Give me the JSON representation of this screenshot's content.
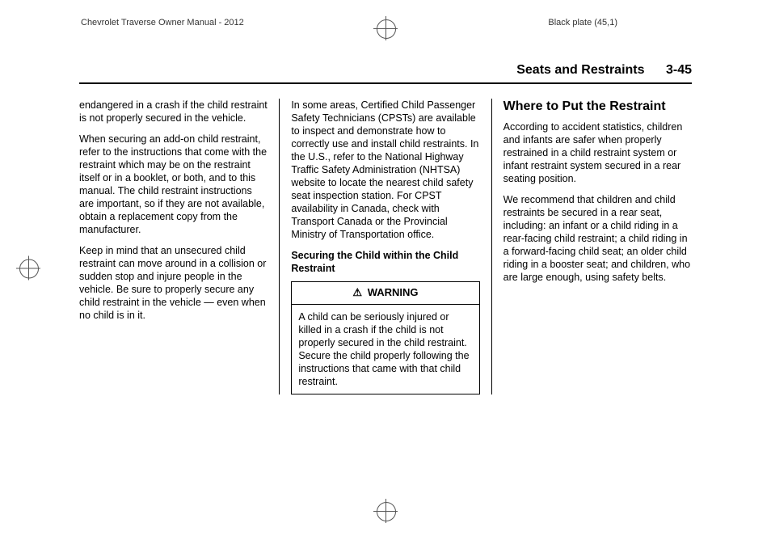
{
  "header": {
    "left": "Chevrolet Traverse Owner Manual - 2012",
    "right": "Black plate (45,1)"
  },
  "pageHeader": {
    "section": "Seats and Restraints",
    "number": "3-45"
  },
  "col1": {
    "p1": "endangered in a crash if the child restraint is not properly secured in the vehicle.",
    "p2": "When securing an add-on child restraint, refer to the instructions that come with the restraint which may be on the restraint itself or in a booklet, or both, and to this manual. The child restraint instructions are important, so if they are not available, obtain a replacement copy from the manufacturer.",
    "p3": "Keep in mind that an unsecured child restraint can move around in a collision or sudden stop and injure people in the vehicle. Be sure to properly secure any child restraint in the vehicle — even when no child is in it."
  },
  "col2": {
    "p1": "In some areas, Certified Child Passenger Safety Technicians (CPSTs) are available to inspect and demonstrate how to correctly use and install child restraints. In the U.S., refer to the National Highway Traffic Safety Administration (NHTSA) website to locate the nearest child safety seat inspection station. For CPST availability in Canada, check with Transport Canada or the Provincial Ministry of Transportation office.",
    "subhead": "Securing the Child within the Child Restraint",
    "warningLabel": "WARNING",
    "warningBody": "A child can be seriously injured or killed in a crash if the child is not properly secured in the child restraint. Secure the child properly following the instructions that came with that child restraint."
  },
  "col3": {
    "heading": "Where to Put the Restraint",
    "p1": "According to accident statistics, children and infants are safer when properly restrained in a child restraint system or infant restraint system secured in a rear seating position.",
    "p2": "We recommend that children and child restraints be secured in a rear seat, including: an infant or a child riding in a rear-facing child restraint; a child riding in a forward-facing child seat; an older child riding in a booster seat; and children, who are large enough, using safety belts."
  }
}
